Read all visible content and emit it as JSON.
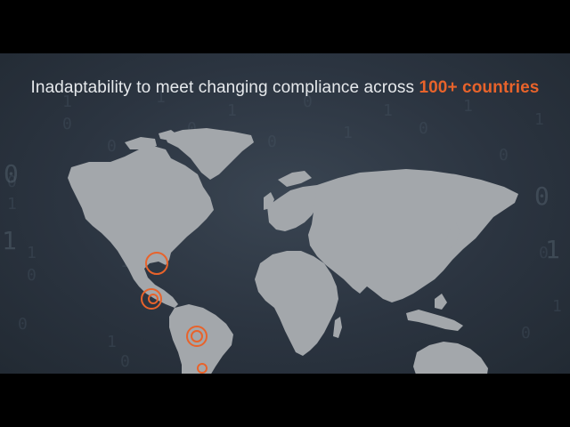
{
  "slide": {
    "headline_text": "Inadaptability to meet changing compliance across ",
    "headline_accent": "100+ countries",
    "accent_color": "#e8632b",
    "background_color": "#2b3440",
    "map_color": "#a3a7ab"
  },
  "map": {
    "marker_locations": [
      "North America",
      "Central America",
      "Northern South America",
      "Central South America"
    ]
  },
  "decor": {
    "icon": "binary-code-background"
  }
}
